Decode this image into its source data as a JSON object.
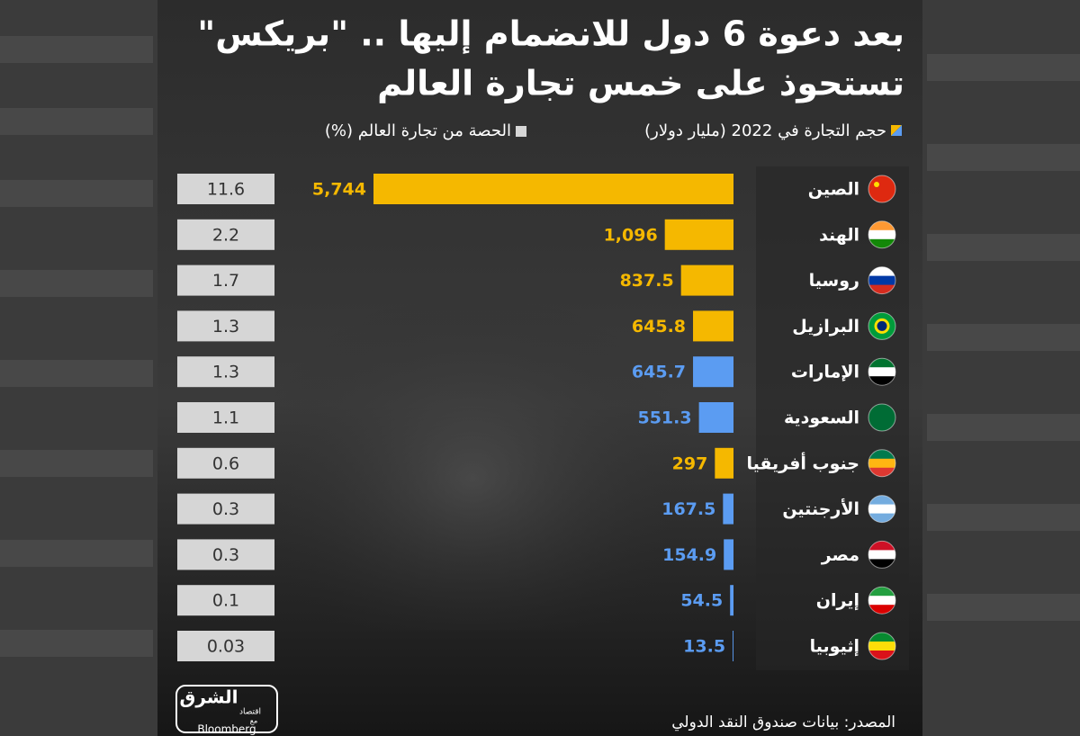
{
  "chart_data": {
    "type": "bar",
    "orientation": "horizontal",
    "title": [
      "بعد دعوة 6 دول للانضمام إليها .. \"بريكس\"",
      "تستحوذ على خمس تجارة العالم"
    ],
    "categories": [
      "الصين",
      "الهند",
      "روسيا",
      "البرازيل",
      "الإمارات",
      "السعودية",
      "جنوب أفريقيا",
      "الأرجنتين",
      "مصر",
      "إيران",
      "إثيوبيا"
    ],
    "series": [
      {
        "name": "حجم التجارة في 2022 (مليار دولار)",
        "values": [
          5744,
          1096,
          837.5,
          645.8,
          645.7,
          551.3,
          297,
          167.5,
          154.9,
          54.5,
          13.5
        ],
        "value_labels": [
          "5,744",
          "1,096",
          "837.5",
          "645.8",
          "645.7",
          "551.3",
          "297",
          "167.5",
          "154.9",
          "54.5",
          "13.5"
        ],
        "colors": [
          "#f5b800",
          "#f5b800",
          "#f5b800",
          "#f5b800",
          "#5b9cf2",
          "#5b9cf2",
          "#f5b800",
          "#5b9cf2",
          "#5b9cf2",
          "#5b9cf2",
          "#5b9cf2"
        ]
      },
      {
        "name": "الحصة من تجارة العالم (%)",
        "color": "#d6d6d6",
        "values": [
          11.6,
          2.2,
          1.7,
          1.3,
          1.3,
          1.1,
          0.6,
          0.3,
          0.3,
          0.1,
          0.03
        ]
      }
    ],
    "source": "المصدر: بيانات صندوق النقد الدولي",
    "logo": {
      "brand": "الشرق",
      "sub": "اقتصاد",
      "with": "مع",
      "partner": "Bloomberg"
    }
  }
}
